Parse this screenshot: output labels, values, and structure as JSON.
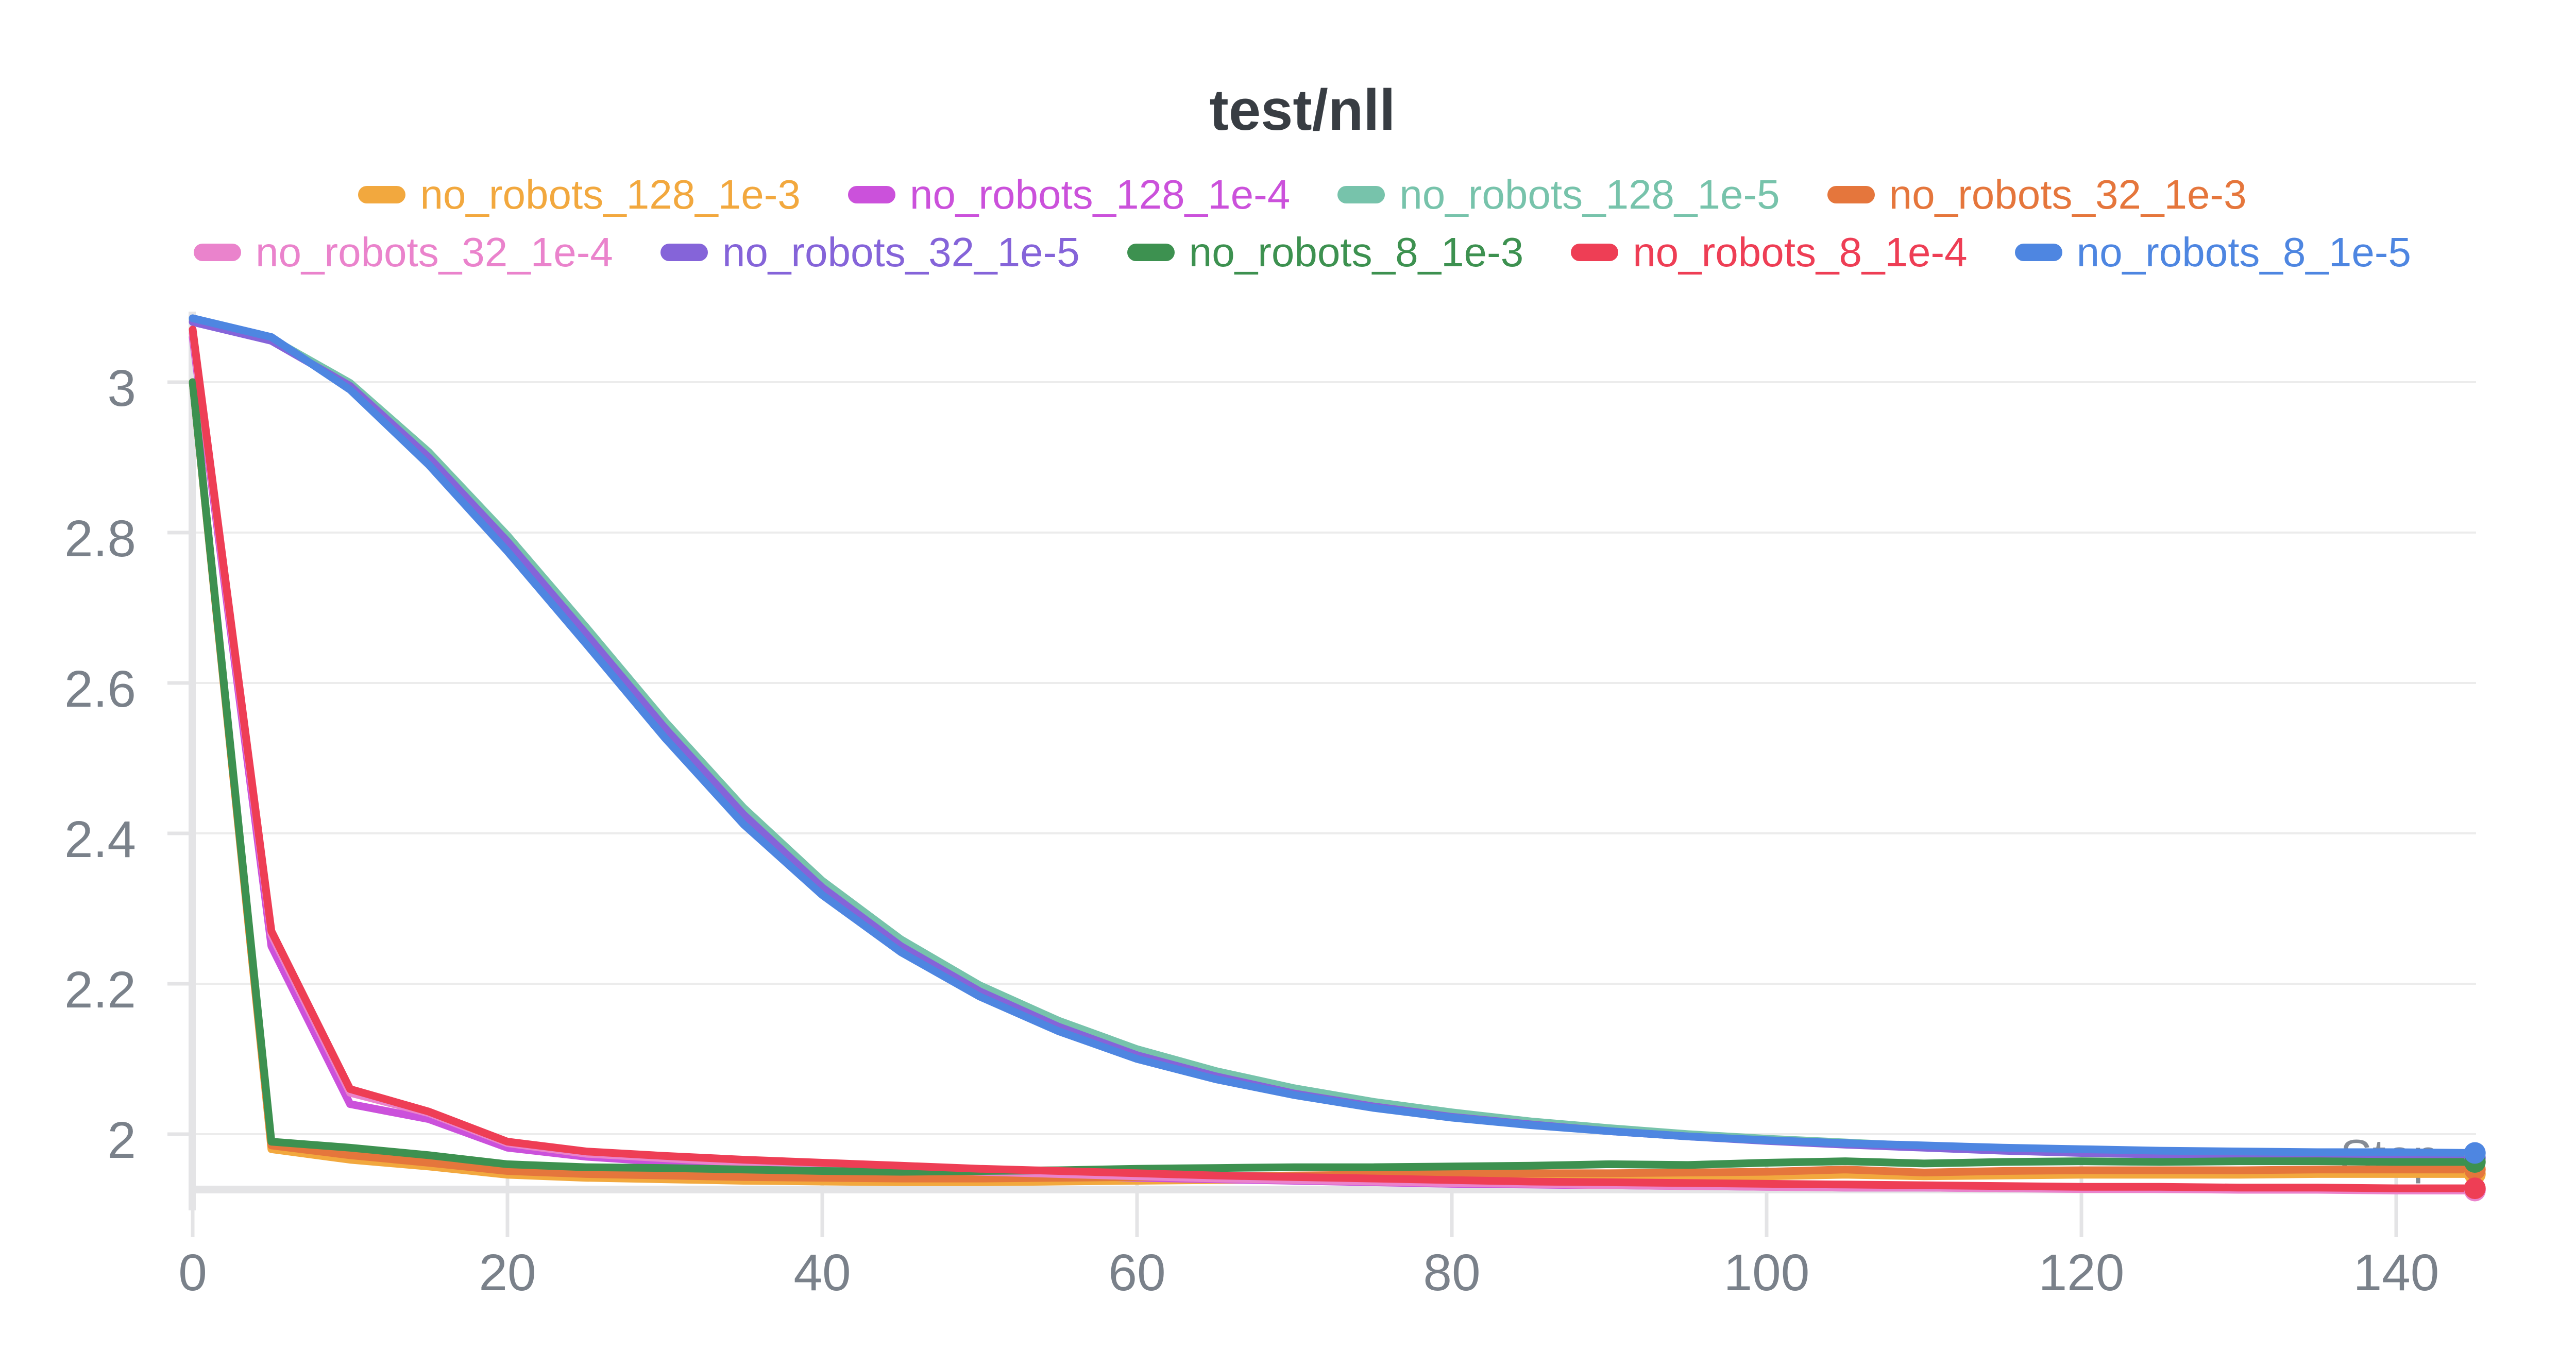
{
  "title": "test/nll",
  "colors": {
    "title": "#383D43",
    "tick_label": "#7A818A",
    "axis_label": "#858B94",
    "gridline": "#ECECEC",
    "axis_band": "#E4E4E6",
    "background": "#FFFFFF"
  },
  "legend": {
    "rows": [
      [
        0,
        1,
        2,
        3
      ],
      [
        4,
        5,
        6,
        7,
        8
      ]
    ]
  },
  "chart_data": {
    "type": "line",
    "title": "test/nll",
    "xlabel": "Step",
    "ylabel": "",
    "grid": "horizontal",
    "legend_position": "top",
    "x_ticks": [
      0,
      20,
      40,
      60,
      80,
      100,
      120,
      140
    ],
    "y_ticks": [
      3,
      2.8,
      2.6,
      2.4,
      2.2,
      2
    ],
    "x_range": [
      0,
      145
    ],
    "y_range": [
      1.925,
      3.095
    ],
    "x": [
      0,
      5,
      10,
      15,
      20,
      25,
      30,
      35,
      40,
      45,
      50,
      55,
      60,
      65,
      70,
      75,
      80,
      85,
      90,
      95,
      100,
      105,
      110,
      115,
      120,
      125,
      130,
      135,
      140,
      145
    ],
    "series": [
      {
        "name": "no_robots_128_1e-3",
        "color": "#F2A83E",
        "end_dot": true,
        "values": [
          3.0,
          1.98,
          1.966,
          1.957,
          1.946,
          1.942,
          1.94,
          1.938,
          1.937,
          1.936,
          1.936,
          1.937,
          1.938,
          1.939,
          1.94,
          1.941,
          1.941,
          1.942,
          1.943,
          1.943,
          1.944,
          1.946,
          1.944,
          1.945,
          1.946,
          1.946,
          1.946,
          1.947,
          1.947,
          1.947
        ]
      },
      {
        "name": "no_robots_128_1e-4",
        "color": "#CB51DB",
        "end_dot": true,
        "values": [
          3.06,
          2.25,
          2.04,
          2.02,
          1.982,
          1.97,
          1.963,
          1.958,
          1.954,
          1.951,
          1.948,
          1.945,
          1.942,
          1.94,
          1.938,
          1.936,
          1.934,
          1.933,
          1.932,
          1.931,
          1.93,
          1.929,
          1.929,
          1.928,
          1.928,
          1.927,
          1.927,
          1.926,
          1.926,
          1.926
        ]
      },
      {
        "name": "no_robots_128_1e-5",
        "color": "#77C3AB",
        "end_dot": true,
        "values": [
          3.083,
          3.058,
          2.999,
          2.907,
          2.796,
          2.674,
          2.549,
          2.434,
          2.337,
          2.259,
          2.198,
          2.151,
          2.113,
          2.084,
          2.061,
          2.043,
          2.029,
          2.017,
          2.008,
          2.0,
          1.994,
          1.989,
          1.984,
          1.98,
          1.977,
          1.974,
          1.972,
          1.971,
          1.97,
          1.969
        ]
      },
      {
        "name": "no_robots_32_1e-3",
        "color": "#E5763C",
        "end_dot": true,
        "values": [
          3.0,
          1.985,
          1.972,
          1.962,
          1.951,
          1.947,
          1.945,
          1.943,
          1.942,
          1.941,
          1.941,
          1.942,
          1.943,
          1.944,
          1.945,
          1.946,
          1.947,
          1.948,
          1.948,
          1.949,
          1.95,
          1.953,
          1.949,
          1.951,
          1.952,
          1.952,
          1.952,
          1.953,
          1.953,
          1.953
        ]
      },
      {
        "name": "no_robots_32_1e-4",
        "color": "#EA83CC",
        "end_dot": true,
        "values": [
          3.065,
          2.265,
          2.055,
          2.028,
          1.988,
          1.974,
          1.968,
          1.962,
          1.958,
          1.954,
          1.95,
          1.947,
          1.944,
          1.941,
          1.939,
          1.937,
          1.935,
          1.934,
          1.932,
          1.931,
          1.93,
          1.929,
          1.929,
          1.928,
          1.927,
          1.927,
          1.926,
          1.926,
          1.925,
          1.925
        ]
      },
      {
        "name": "no_robots_32_1e-5",
        "color": "#8564D9",
        "end_dot": true,
        "values": [
          3.08,
          3.055,
          2.995,
          2.9,
          2.788,
          2.665,
          2.54,
          2.425,
          2.328,
          2.25,
          2.19,
          2.143,
          2.105,
          2.077,
          2.054,
          2.037,
          2.023,
          2.013,
          2.004,
          1.997,
          1.991,
          1.986,
          1.982,
          1.978,
          1.975,
          1.973,
          1.971,
          1.97,
          1.969,
          1.968
        ]
      },
      {
        "name": "no_robots_8_1e-3",
        "color": "#3D9150",
        "end_dot": true,
        "values": [
          3.0,
          1.99,
          1.982,
          1.972,
          1.96,
          1.956,
          1.955,
          1.953,
          1.951,
          1.95,
          1.951,
          1.952,
          1.954,
          1.955,
          1.956,
          1.956,
          1.957,
          1.958,
          1.96,
          1.959,
          1.962,
          1.964,
          1.961,
          1.963,
          1.964,
          1.963,
          1.964,
          1.964,
          1.963,
          1.963
        ]
      },
      {
        "name": "no_robots_8_1e-4",
        "color": "#EE3E55",
        "end_dot": true,
        "values": [
          3.07,
          2.27,
          2.06,
          2.03,
          1.99,
          1.977,
          1.971,
          1.966,
          1.962,
          1.958,
          1.954,
          1.951,
          1.948,
          1.945,
          1.943,
          1.941,
          1.939,
          1.937,
          1.936,
          1.935,
          1.934,
          1.933,
          1.932,
          1.931,
          1.93,
          1.93,
          1.929,
          1.929,
          1.928,
          1.928
        ]
      },
      {
        "name": "no_robots_8_1e-5",
        "color": "#4E86E1",
        "end_dot": true,
        "values": [
          3.085,
          3.06,
          2.99,
          2.89,
          2.775,
          2.652,
          2.527,
          2.412,
          2.318,
          2.242,
          2.183,
          2.137,
          2.1,
          2.073,
          2.052,
          2.035,
          2.022,
          2.012,
          2.004,
          1.997,
          1.992,
          1.988,
          1.985,
          1.982,
          1.98,
          1.978,
          1.977,
          1.976,
          1.976,
          1.975
        ]
      }
    ]
  }
}
